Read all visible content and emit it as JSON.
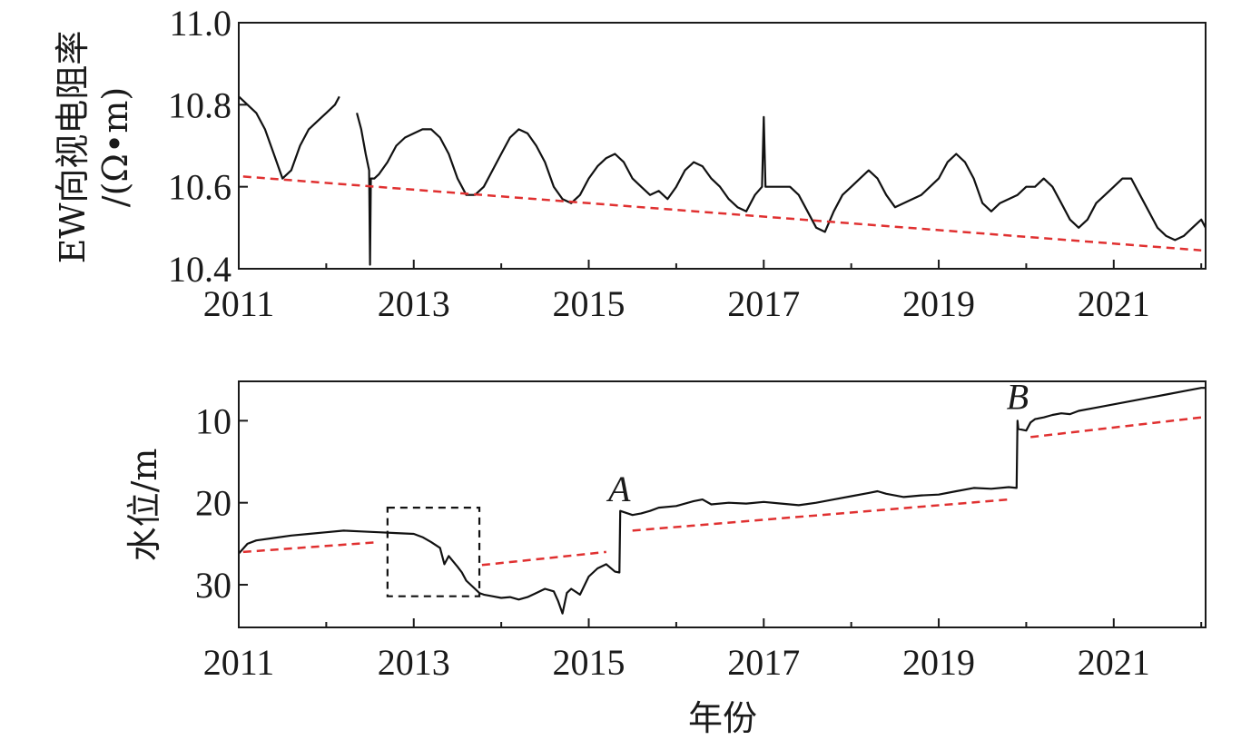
{
  "chart_data": [
    {
      "type": "line",
      "title": "",
      "xlabel": "",
      "ylabel_line1": "EW向视电阻率",
      "ylabel_line2": "/(Ω•m)",
      "xlim": [
        2011,
        2022.05
      ],
      "ylim": [
        10.4,
        11.0
      ],
      "y_inverted": false,
      "xticks": [
        2011,
        2013,
        2015,
        2017,
        2019,
        2021
      ],
      "xtick_labels": [
        "2011",
        "2013",
        "2015",
        "2017",
        "2019",
        "2021"
      ],
      "yticks": [
        10.4,
        10.6,
        10.8,
        11.0
      ],
      "ytick_labels": [
        "10.4",
        "10.6",
        "10.8",
        "11.0"
      ],
      "grid": false,
      "series": [
        {
          "color": "#111111",
          "style": "solid",
          "x": [
            2011.0,
            2011.1,
            2011.2,
            2011.3,
            2011.4,
            2011.5,
            2011.6,
            2011.7,
            2011.8,
            2011.9,
            2012.0,
            2012.1,
            2012.15,
            null,
            2012.35,
            2012.4,
            2012.45,
            2012.49,
            2012.5,
            2012.51,
            2012.55,
            2012.6,
            2012.7,
            2012.8,
            2012.9,
            2013.0,
            2013.1,
            2013.2,
            2013.3,
            2013.4,
            2013.5,
            2013.6,
            2013.7,
            2013.8,
            2013.9,
            2014.0,
            2014.1,
            2014.2,
            2014.3,
            2014.4,
            2014.5,
            2014.6,
            2014.7,
            2014.8,
            2014.9,
            2015.0,
            2015.1,
            2015.2,
            2015.3,
            2015.4,
            2015.5,
            2015.6,
            2015.7,
            2015.8,
            2015.9,
            2016.0,
            2016.1,
            2016.2,
            2016.3,
            2016.4,
            2016.5,
            2016.6,
            2016.7,
            2016.8,
            2016.9,
            2016.98,
            2017.0,
            2017.02,
            2017.1,
            2017.2,
            2017.3,
            2017.4,
            2017.5,
            2017.6,
            2017.7,
            2017.8,
            2017.9,
            2018.0,
            2018.1,
            2018.2,
            2018.3,
            2018.4,
            2018.5,
            2018.6,
            2018.7,
            2018.8,
            2018.9,
            2019.0,
            2019.1,
            2019.2,
            2019.3,
            2019.4,
            2019.5,
            2019.6,
            2019.7,
            2019.8,
            2019.9,
            2020.0,
            2020.1,
            2020.2,
            2020.3,
            2020.4,
            2020.5,
            2020.6,
            2020.7,
            2020.8,
            2020.9,
            2021.0,
            2021.1,
            2021.2,
            2021.3,
            2021.4,
            2021.5,
            2021.6,
            2021.7,
            2021.8,
            2021.9,
            2022.0,
            2022.05
          ],
          "y": [
            10.82,
            10.8,
            10.78,
            10.74,
            10.68,
            10.62,
            10.64,
            10.7,
            10.74,
            10.76,
            10.78,
            10.8,
            10.82,
            null,
            10.78,
            10.74,
            10.68,
            10.64,
            10.41,
            10.62,
            10.62,
            10.63,
            10.66,
            10.7,
            10.72,
            10.73,
            10.74,
            10.74,
            10.72,
            10.68,
            10.62,
            10.58,
            10.58,
            10.6,
            10.64,
            10.68,
            10.72,
            10.74,
            10.73,
            10.7,
            10.66,
            10.6,
            10.57,
            10.56,
            10.58,
            10.62,
            10.65,
            10.67,
            10.68,
            10.66,
            10.62,
            10.6,
            10.58,
            10.59,
            10.57,
            10.6,
            10.64,
            10.66,
            10.65,
            10.62,
            10.6,
            10.57,
            10.55,
            10.54,
            10.58,
            10.6,
            10.77,
            10.6,
            10.6,
            10.6,
            10.6,
            10.58,
            10.54,
            10.5,
            10.49,
            10.54,
            10.58,
            10.6,
            10.62,
            10.64,
            10.62,
            10.58,
            10.55,
            10.56,
            10.57,
            10.58,
            10.6,
            10.62,
            10.66,
            10.68,
            10.66,
            10.62,
            10.56,
            10.54,
            10.56,
            10.57,
            10.58,
            10.6,
            10.6,
            10.62,
            10.6,
            10.56,
            10.52,
            10.5,
            10.52,
            10.56,
            10.58,
            10.6,
            10.62,
            10.62,
            10.58,
            10.54,
            10.5,
            10.48,
            10.47,
            10.48,
            10.5,
            10.52,
            10.5
          ]
        },
        {
          "color": "#e03030",
          "style": "dashed",
          "x": [
            2011.05,
            2022.0
          ],
          "y": [
            10.625,
            10.445
          ]
        }
      ]
    },
    {
      "type": "line",
      "title": "",
      "xlabel": "年份",
      "ylabel": "水位/m",
      "xlim": [
        2011,
        2022.05
      ],
      "ylim": [
        5.2,
        35.2
      ],
      "y_inverted": true,
      "xticks": [
        2011,
        2013,
        2015,
        2017,
        2019,
        2021
      ],
      "xtick_labels": [
        "2011",
        "2013",
        "2015",
        "2017",
        "2019",
        "2021"
      ],
      "yticks": [
        10,
        20,
        30
      ],
      "ytick_labels": [
        "10",
        "20",
        "30"
      ],
      "grid": false,
      "series": [
        {
          "color": "#111111",
          "style": "solid",
          "x": [
            2011.0,
            2011.1,
            2011.2,
            2011.4,
            2011.6,
            2011.8,
            2012.0,
            2012.2,
            2012.4,
            2012.6,
            2012.8,
            2013.0,
            2013.1,
            2013.2,
            2013.3,
            2013.35,
            2013.4,
            2013.5,
            2013.55,
            2013.6,
            2013.7,
            2013.75,
            2013.8,
            2013.9,
            2014.0,
            2014.1,
            2014.2,
            2014.3,
            2014.4,
            2014.5,
            2014.6,
            2014.65,
            2014.7,
            2014.75,
            2014.8,
            2014.9,
            2015.0,
            2015.1,
            2015.2,
            2015.3,
            2015.35,
            2015.36,
            2015.5,
            2015.6,
            2015.7,
            2015.8,
            2016.0,
            2016.2,
            2016.3,
            2016.4,
            2016.6,
            2016.8,
            2017.0,
            2017.2,
            2017.4,
            2017.6,
            2017.8,
            2018.0,
            2018.2,
            2018.3,
            2018.4,
            2018.6,
            2018.8,
            2019.0,
            2019.2,
            2019.4,
            2019.6,
            2019.8,
            2019.89,
            2019.9,
            2019.91,
            2020.0,
            2020.05,
            2020.1,
            2020.2,
            2020.3,
            2020.4,
            2020.5,
            2020.6,
            2020.8,
            2021.0,
            2021.2,
            2021.4,
            2021.6,
            2021.8,
            2022.0,
            2022.05
          ],
          "y": [
            26.2,
            25.0,
            24.6,
            24.3,
            24.0,
            23.8,
            23.6,
            23.4,
            23.5,
            23.6,
            23.7,
            23.8,
            24.2,
            24.8,
            25.5,
            27.5,
            26.5,
            27.8,
            28.5,
            29.5,
            30.5,
            31.0,
            31.2,
            31.4,
            31.6,
            31.5,
            31.8,
            31.5,
            31.0,
            30.5,
            30.8,
            32.0,
            33.5,
            31.0,
            30.5,
            31.2,
            29.0,
            28.0,
            27.5,
            28.4,
            28.5,
            21.0,
            21.5,
            21.3,
            21.0,
            20.6,
            20.4,
            19.8,
            19.6,
            20.2,
            20.0,
            20.1,
            19.9,
            20.1,
            20.3,
            20.0,
            19.6,
            19.2,
            18.8,
            18.6,
            18.9,
            19.3,
            19.1,
            19.0,
            18.6,
            18.2,
            18.3,
            18.1,
            18.2,
            10.0,
            11.0,
            11.2,
            10.2,
            9.8,
            9.6,
            9.3,
            9.1,
            9.2,
            8.8,
            8.4,
            8.0,
            7.6,
            7.2,
            6.8,
            6.4,
            6.0,
            6.0
          ]
        },
        {
          "color": "#e03030",
          "style": "dashed",
          "x": [
            2011.05,
            2012.6
          ],
          "y": [
            26.0,
            24.8
          ]
        },
        {
          "color": "#e03030",
          "style": "dashed",
          "x": [
            2013.78,
            2015.2
          ],
          "y": [
            27.6,
            26.0
          ]
        },
        {
          "color": "#e03030",
          "style": "dashed",
          "x": [
            2015.5,
            2019.8
          ],
          "y": [
            23.4,
            19.6
          ]
        },
        {
          "color": "#e03030",
          "style": "dashed",
          "x": [
            2020.05,
            2022.0
          ],
          "y": [
            12.0,
            9.6
          ]
        }
      ],
      "box": {
        "x": [
          2012.7,
          2013.75
        ],
        "y": [
          20.6,
          31.4
        ]
      },
      "annotations": [
        {
          "text": "A",
          "x": 2015.35,
          "y": 19.8
        },
        {
          "text": "B",
          "x": 2019.9,
          "y": 8.6
        }
      ]
    }
  ]
}
